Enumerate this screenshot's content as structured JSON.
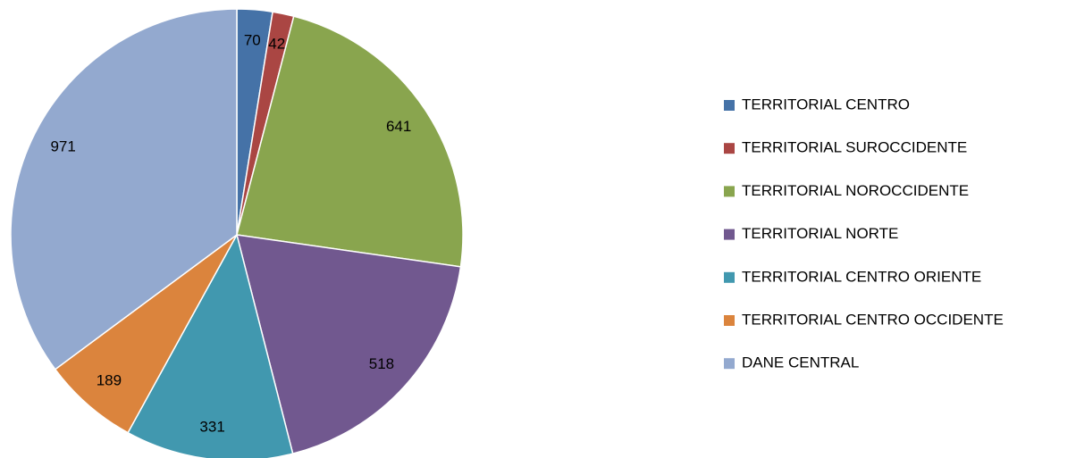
{
  "chart_data": {
    "type": "pie",
    "categories": [
      "TERRITORIAL CENTRO",
      "TERRITORIAL SUROCCIDENTE",
      "TERRITORIAL NOROCCIDENTE",
      "TERRITORIAL NORTE",
      "TERRITORIAL CENTRO ORIENTE",
      "TERRITORIAL CENTRO OCCIDENTE",
      "DANE CENTRAL"
    ],
    "values": [
      70,
      42,
      641,
      518,
      331,
      189,
      971
    ],
    "colors": [
      "#4572A7",
      "#AA4643",
      "#89A54E",
      "#71588F",
      "#4198AF",
      "#DB843D",
      "#93A9CF"
    ],
    "legend": "right"
  }
}
